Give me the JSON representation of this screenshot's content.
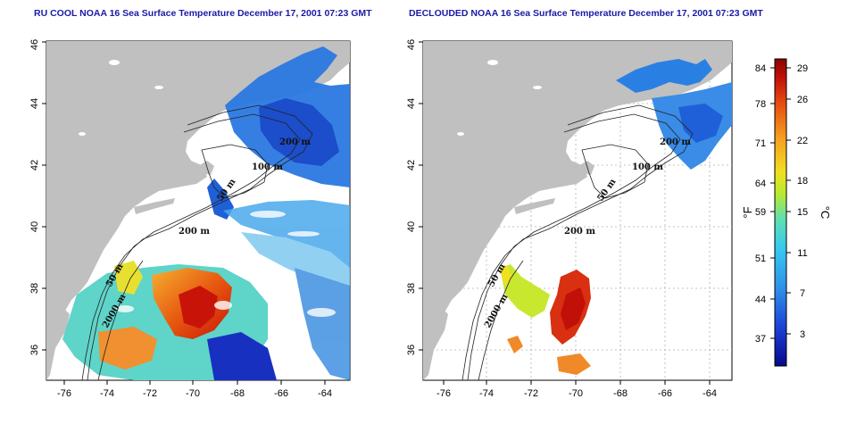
{
  "panels": [
    {
      "id": "left",
      "title": "RU COOL NOAA 16 Sea Surface Temperature December 17, 2001 07:23 GMT",
      "contour_labels": [
        "200 m",
        "100 m",
        "50 m",
        "200 m",
        "50 m",
        "2000 m"
      ]
    },
    {
      "id": "right",
      "title": "DECLOUDED NOAA 16 Sea Surface Temperature December 17, 2001 07:23 GMT",
      "contour_labels": [
        "200 m",
        "100 m",
        "50 m",
        "200 m",
        "50 m",
        "2000 m"
      ]
    }
  ],
  "axes": {
    "x_ticks": [
      "-76",
      "-74",
      "-72",
      "-70",
      "-68",
      "-66",
      "-64"
    ],
    "y_ticks": [
      "36",
      "38",
      "40",
      "42",
      "44",
      "46"
    ],
    "lon_range": [
      -77.2,
      -63.0
    ],
    "lat_range": [
      35.0,
      46.0
    ]
  },
  "colorbar": {
    "fahrenheit_ticks": [
      "84",
      "78",
      "71",
      "64",
      "59",
      "51",
      "44",
      "37"
    ],
    "celsius_ticks": [
      "29",
      "26",
      "22",
      "18",
      "15",
      "11",
      "7",
      "3"
    ],
    "fahrenheit_unit": "°F",
    "celsius_unit": "°C"
  },
  "colors": {
    "land": "#c0c0c0",
    "title": "#1a1aa6",
    "grid": "#b0b0b0",
    "scale": [
      "#08088a",
      "#1a3fd6",
      "#2f7fe6",
      "#35c0f0",
      "#4de0c0",
      "#a8e830",
      "#f0e020",
      "#f5a020",
      "#e85010",
      "#c81208",
      "#8a0505"
    ]
  }
}
